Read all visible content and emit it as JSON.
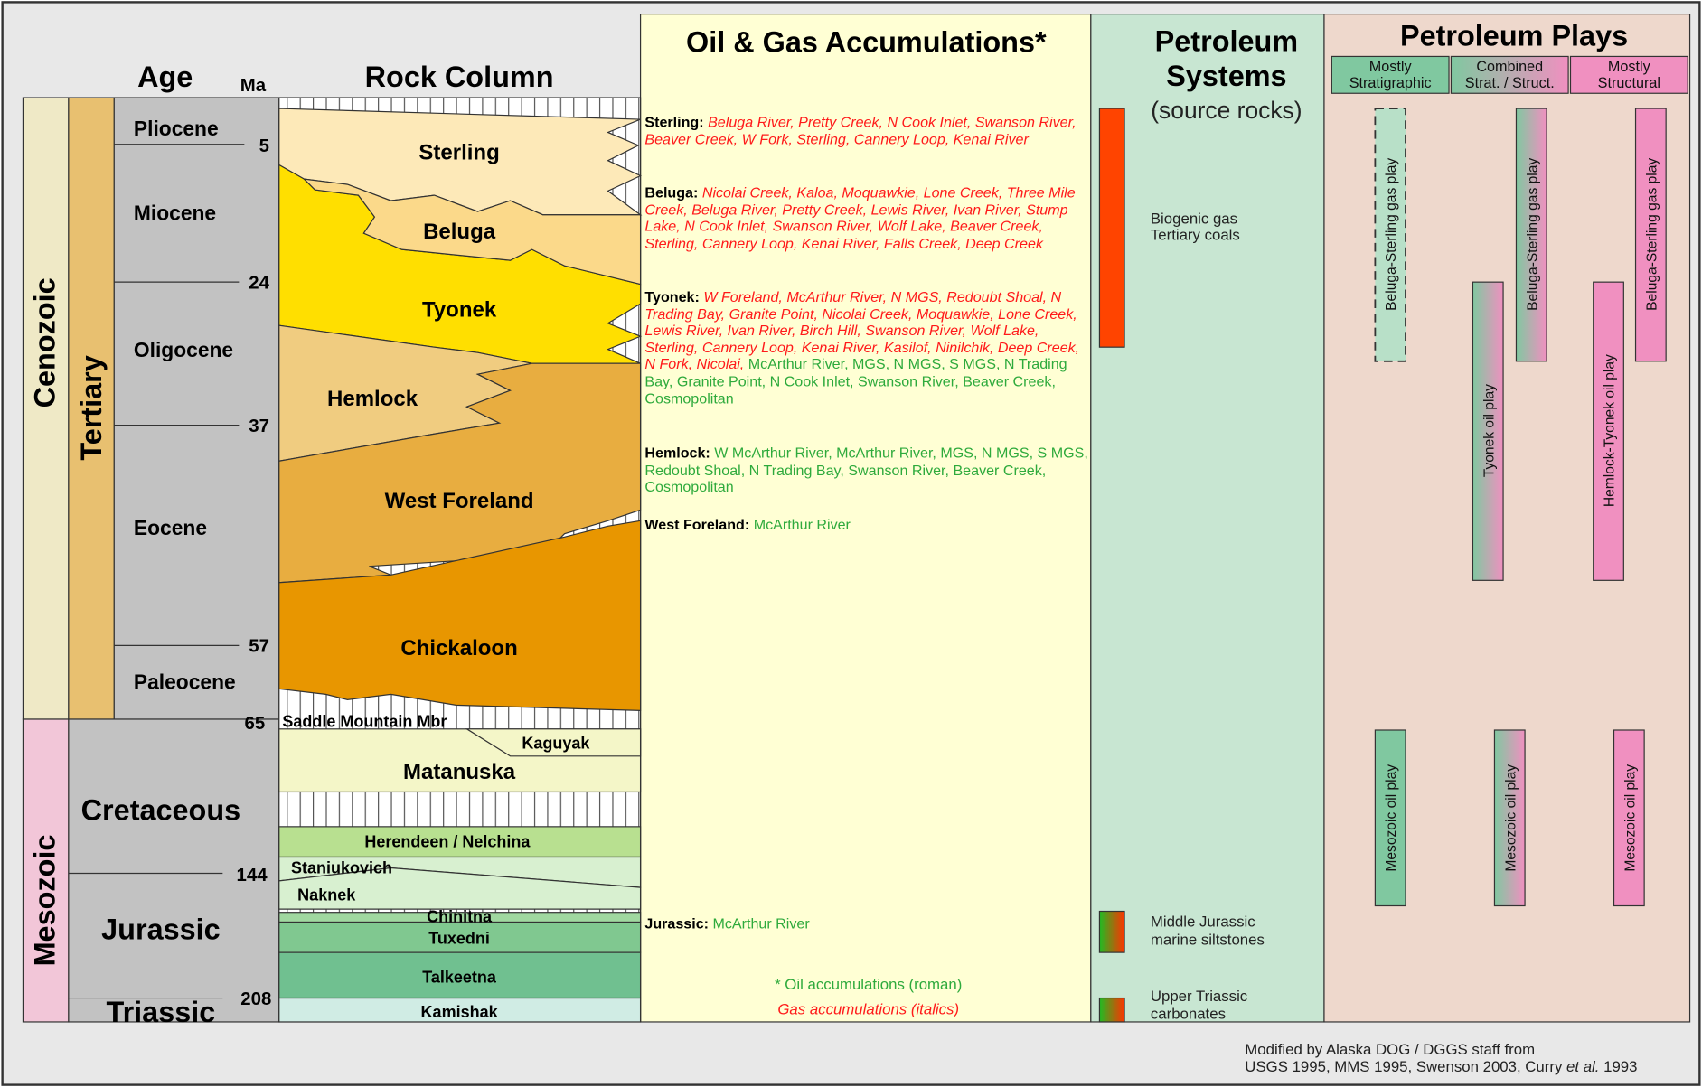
{
  "headers": {
    "age": "Age",
    "ma": "Ma",
    "rock_column": "Rock Column",
    "accumulations": "Oil & Gas Accumulations*",
    "systems": [
      "Petroleum",
      "Systems"
    ],
    "systems_sub": "(source rocks)",
    "plays": "Petroleum Plays"
  },
  "eras": [
    "Cenozoic",
    "Mesozoic"
  ],
  "periods": [
    "Tertiary",
    "Cretaceous",
    "Jurassic",
    "Triassic"
  ],
  "epochs": [
    "Pliocene",
    "Miocene",
    "Oligocene",
    "Eocene",
    "Paleocene"
  ],
  "ma_ticks": [
    5,
    24,
    37,
    57,
    65,
    144,
    208
  ],
  "formations": [
    "Sterling",
    "Beluga",
    "Tyonek",
    "Hemlock",
    "West Foreland",
    "Chickaloon",
    "Saddle Mountain Mbr",
    "Kaguyak",
    "Matanuska",
    "Herendeen / Nelchina",
    "Staniukovich",
    "Naknek",
    "Chinitna",
    "Tuxedni",
    "Talkeetna",
    "Kamishak"
  ],
  "accumulations": [
    {
      "formation": "Sterling:",
      "gas": "Beluga River, Pretty Creek, N Cook Inlet, Swanson River, Beaver Creek, W Fork, Sterling, Cannery Loop, Kenai River"
    },
    {
      "formation": "Beluga:",
      "gas": "Nicolai Creek, Kaloa, Moquawkie, Lone Creek, Three Mile Creek, Beluga River, Pretty Creek, Lewis River, Ivan River, Stump Lake, N Cook Inlet, Swanson River, Wolf Lake, Beaver Creek, Sterling, Cannery Loop, Kenai River, Falls Creek, Deep Creek"
    },
    {
      "formation": "Tyonek:",
      "gas": "W Foreland, McArthur River, N MGS, Redoubt Shoal, N Trading Bay, Granite Point, Nicolai Creek, Moquawkie, Lone Creek, Lewis River, Ivan River, Birch Hill, Swanson River, Wolf Lake, Sterling, Cannery Loop, Kenai River, Kasilof, Ninilchik, Deep Creek, N Fork, Nicolai,",
      "oil": "McArthur River, MGS, N MGS, S MGS, N Trading Bay, Granite Point, N Cook Inlet, Swanson River, Beaver Creek, Cosmopolitan"
    },
    {
      "formation": "Hemlock:",
      "oil": "W McArthur River, McArthur River, MGS, N MGS, S MGS, Redoubt Shoal, N Trading Bay, Swanson River, Beaver Creek, Cosmopolitan"
    },
    {
      "formation": "West Foreland:",
      "oil": "McArthur River"
    },
    {
      "formation": "Jurassic:",
      "oil": "McArthur River"
    }
  ],
  "notes": {
    "oil": "* Oil accumulations (roman)",
    "gas": "Gas accumulations (italics)"
  },
  "systems": [
    {
      "label": [
        "Biogenic gas",
        "Tertiary coals"
      ]
    },
    {
      "label": [
        "Middle Jurassic",
        "marine siltstones"
      ]
    },
    {
      "label": [
        "Upper Triassic",
        "carbonates"
      ]
    }
  ],
  "play_types": [
    [
      "Mostly",
      "Stratigraphic"
    ],
    [
      "Combined",
      "Strat. / Struct."
    ],
    [
      "Mostly",
      "Structural"
    ]
  ],
  "plays": [
    "Beluga-Sterling gas play",
    "Beluga-Sterling gas play",
    "Beluga-Sterling gas play",
    "Tyonek oil play",
    "Hemlock-Tyonek oil play",
    "Mesozoic oil play",
    "Mesozoic oil play",
    "Mesozoic oil play"
  ],
  "credit": {
    "line1": "Modified by Alaska DOG / DGGS staff from",
    "line2": [
      "USGS 1995, MMS 1995, Swenson 2003, Curry ",
      "et al.",
      " 1993"
    ]
  }
}
